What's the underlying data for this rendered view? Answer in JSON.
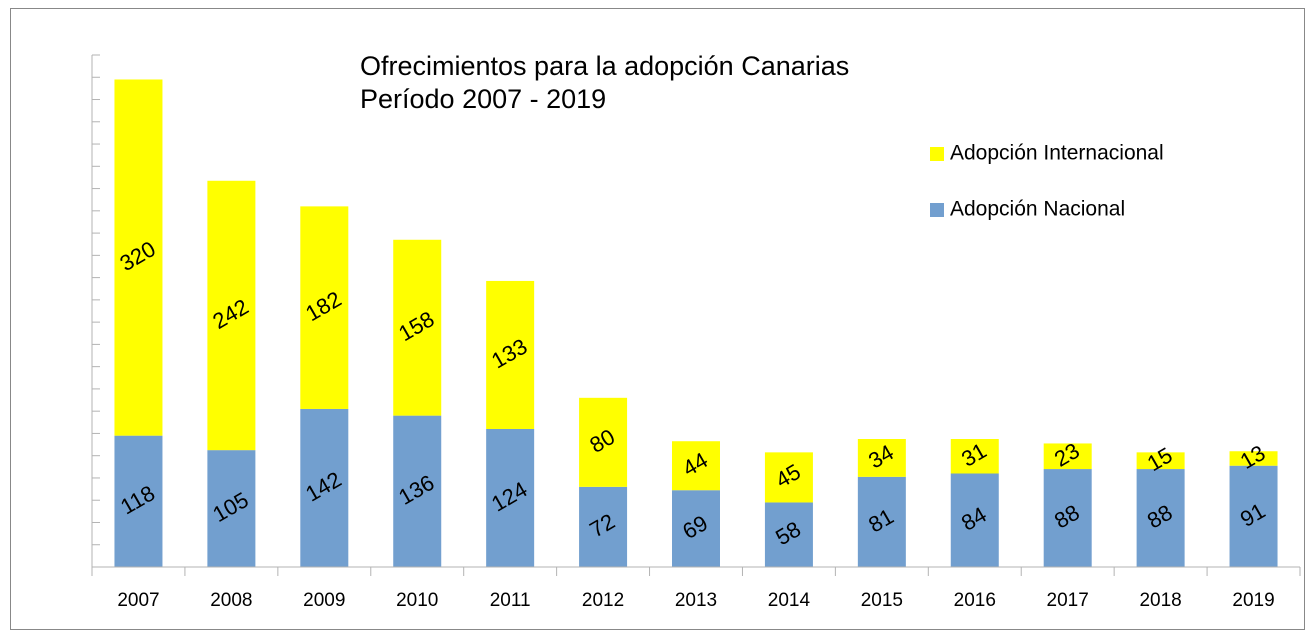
{
  "chart_data": {
    "type": "stacked_bar",
    "title": [
      "Ofrecimientos para la adopción Canarias",
      "Período 2007 - 2019"
    ],
    "categories": [
      "2007",
      "2008",
      "2009",
      "2010",
      "2011",
      "2012",
      "2013",
      "2014",
      "2015",
      "2016",
      "2017",
      "2018",
      "2019"
    ],
    "series": [
      {
        "name": "Adopción Nacional",
        "color": "#729fcf",
        "values": [
          118,
          105,
          142,
          136,
          124,
          72,
          69,
          58,
          81,
          84,
          88,
          88,
          91
        ]
      },
      {
        "name": "Adopción Internacional",
        "color": "#ffff00",
        "values": [
          320,
          242,
          182,
          158,
          133,
          80,
          44,
          45,
          34,
          31,
          23,
          15,
          13
        ]
      }
    ],
    "ylim": [
      0,
      460
    ],
    "yticks": [
      0,
      20,
      40,
      60,
      80,
      100,
      120,
      140,
      160,
      180,
      200,
      220,
      240,
      260,
      280,
      300,
      320,
      340,
      360,
      380,
      400,
      420,
      440,
      460
    ],
    "legend": "right"
  }
}
